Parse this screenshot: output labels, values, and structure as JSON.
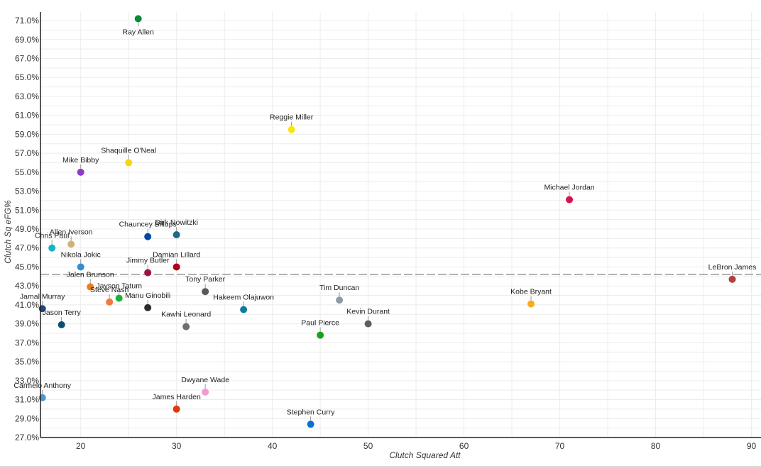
{
  "chart_data": {
    "type": "scatter",
    "title": "",
    "xlabel": "Clutch Squared Att",
    "ylabel": "Clutch Sq eFG%",
    "xlim": [
      15.8,
      91
    ],
    "ylim": [
      27.0,
      71.9
    ],
    "x_ticks": [
      20,
      30,
      40,
      50,
      60,
      70,
      80,
      90
    ],
    "x_tick_labels": [
      "20",
      "30",
      "40",
      "50",
      "60",
      "70",
      "80",
      "90"
    ],
    "y_ticks": [
      27,
      29,
      31,
      33,
      35,
      37,
      39,
      41,
      43,
      45,
      47,
      49,
      51,
      53,
      55,
      57,
      59,
      61,
      63,
      65,
      67,
      69,
      71
    ],
    "y_tick_labels": [
      "27.0%",
      "29.0%",
      "31.0%",
      "33.0%",
      "35.0%",
      "37.0%",
      "39.0%",
      "41.0%",
      "43.0%",
      "45.0%",
      "47.0%",
      "49.0%",
      "51.0%",
      "53.0%",
      "55.0%",
      "57.0%",
      "59.0%",
      "61.0%",
      "63.0%",
      "65.0%",
      "67.0%",
      "69.0%",
      "71.0%"
    ],
    "reference_line": {
      "axis": "y",
      "value": 44.2,
      "style": "dashed"
    },
    "grid": true,
    "points": [
      {
        "name": "Ray Allen",
        "x": 26,
        "y": 71.2,
        "color": "#0b8a3c",
        "label_pos": "below"
      },
      {
        "name": "Reggie Miller",
        "x": 42,
        "y": 59.5,
        "color": "#f5e614",
        "label_pos": "above"
      },
      {
        "name": "Shaquille O'Neal",
        "x": 25,
        "y": 56.0,
        "color": "#f5d614",
        "label_pos": "above"
      },
      {
        "name": "Mike Bibby",
        "x": 20,
        "y": 55.0,
        "color": "#8e3bc9",
        "label_pos": "above"
      },
      {
        "name": "Michael Jordan",
        "x": 71,
        "y": 52.1,
        "color": "#d8124c",
        "label_pos": "above"
      },
      {
        "name": "Dirk Nowitzki",
        "x": 30,
        "y": 48.4,
        "color": "#1e6b85",
        "label_pos": "above"
      },
      {
        "name": "Chauncey Billups",
        "x": 27,
        "y": 48.2,
        "color": "#0048a8",
        "label_pos": "above"
      },
      {
        "name": "Allen Iverson",
        "x": 19,
        "y": 47.4,
        "color": "#d2b27a",
        "label_pos": "above"
      },
      {
        "name": "Chris Paul",
        "x": 17,
        "y": 47.0,
        "color": "#14b4c4",
        "label_pos": "above"
      },
      {
        "name": "Nikola Jokic",
        "x": 20,
        "y": 45.0,
        "color": "#2f8fd6",
        "label_pos": "above"
      },
      {
        "name": "Damian Lillard",
        "x": 30,
        "y": 45.0,
        "color": "#b00016",
        "label_pos": "above"
      },
      {
        "name": "Jimmy Butler",
        "x": 27,
        "y": 44.4,
        "color": "#a3123e",
        "label_pos": "above"
      },
      {
        "name": "LeBron James",
        "x": 88,
        "y": 43.7,
        "color": "#b5403a",
        "label_pos": "above"
      },
      {
        "name": "Jalen Brunson",
        "x": 21,
        "y": 42.9,
        "color": "#e87f1e",
        "label_pos": "above"
      },
      {
        "name": "Tony Parker",
        "x": 33,
        "y": 42.4,
        "color": "#5a5a5a",
        "label_pos": "above"
      },
      {
        "name": "Jayson Tatum",
        "x": 24,
        "y": 41.7,
        "color": "#19b53c",
        "label_pos": "above"
      },
      {
        "name": "Tim Duncan",
        "x": 47,
        "y": 41.5,
        "color": "#8e9aa6",
        "label_pos": "above"
      },
      {
        "name": "Steve Nash",
        "x": 23,
        "y": 41.3,
        "color": "#f07a3c",
        "label_pos": "above"
      },
      {
        "name": "Kobe Bryant",
        "x": 67,
        "y": 41.1,
        "color": "#f6ad1b",
        "label_pos": "above"
      },
      {
        "name": "Manu Ginobili",
        "x": 27,
        "y": 40.7,
        "color": "#2c2c2c",
        "label_pos": "above"
      },
      {
        "name": "Jamal Murray",
        "x": 16,
        "y": 40.6,
        "color": "#194a82",
        "label_pos": "above"
      },
      {
        "name": "Hakeem Olajuwon",
        "x": 37,
        "y": 40.5,
        "color": "#127aa0",
        "label_pos": "above"
      },
      {
        "name": "Kevin Durant",
        "x": 50,
        "y": 39.0,
        "color": "#5e5e5e",
        "label_pos": "above"
      },
      {
        "name": "Jason Terry",
        "x": 18,
        "y": 38.9,
        "color": "#0c4f76",
        "label_pos": "above"
      },
      {
        "name": "Kawhi Leonard",
        "x": 31,
        "y": 38.7,
        "color": "#6e6e6e",
        "label_pos": "above"
      },
      {
        "name": "Paul Pierce",
        "x": 45,
        "y": 37.8,
        "color": "#15a317",
        "label_pos": "above"
      },
      {
        "name": "Dwyane Wade",
        "x": 33,
        "y": 31.8,
        "color": "#f29ad6",
        "label_pos": "above"
      },
      {
        "name": "Carmelo Anthony",
        "x": 16,
        "y": 31.2,
        "color": "#4b97cf",
        "label_pos": "above"
      },
      {
        "name": "James Harden",
        "x": 30,
        "y": 30.0,
        "color": "#e3360e",
        "label_pos": "above"
      },
      {
        "name": "Stephen Curry",
        "x": 44,
        "y": 28.4,
        "color": "#0b6fd6",
        "label_pos": "above"
      }
    ]
  }
}
